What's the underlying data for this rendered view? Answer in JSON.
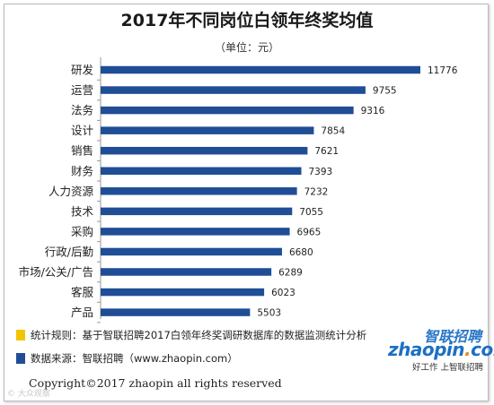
{
  "title": "2017年不同岗位白领年终奖均值",
  "unit": "（单位：元）",
  "colors": {
    "bar": "#1f4e96",
    "legend_rule": "#f2c500",
    "legend_source": "#1f4e96"
  },
  "chart_data": {
    "type": "bar",
    "orientation": "horizontal",
    "title": "2017年不同岗位白领年终奖均值",
    "categories": [
      "研发",
      "运营",
      "法务",
      "设计",
      "销售",
      "财务",
      "人力资源",
      "技术",
      "采购",
      "行政/后勤",
      "市场/公关/广告",
      "客服",
      "产品"
    ],
    "values": [
      11776,
      9755,
      9316,
      7854,
      7621,
      7393,
      7232,
      7055,
      6965,
      6680,
      6289,
      6023,
      5503
    ],
    "xlim": [
      0,
      11776
    ],
    "grid": false,
    "data_labels": true
  },
  "legend": {
    "rule_label": "统计规则：基于智联招聘2017白领年终奖调研数据库的数据监测统计分析",
    "source_label": "数据来源：智联招聘（www.zhaopin.com）"
  },
  "footer": {
    "copyright": "Copyright©2017 zhaopin all rights reserved"
  },
  "logo": {
    "cn": "智联招聘",
    "en_main": "zhaopin",
    "en_dot": ".",
    "en_tld": "com",
    "tagline": "好工作 上智联招聘"
  },
  "watermark": "© 大众观察"
}
